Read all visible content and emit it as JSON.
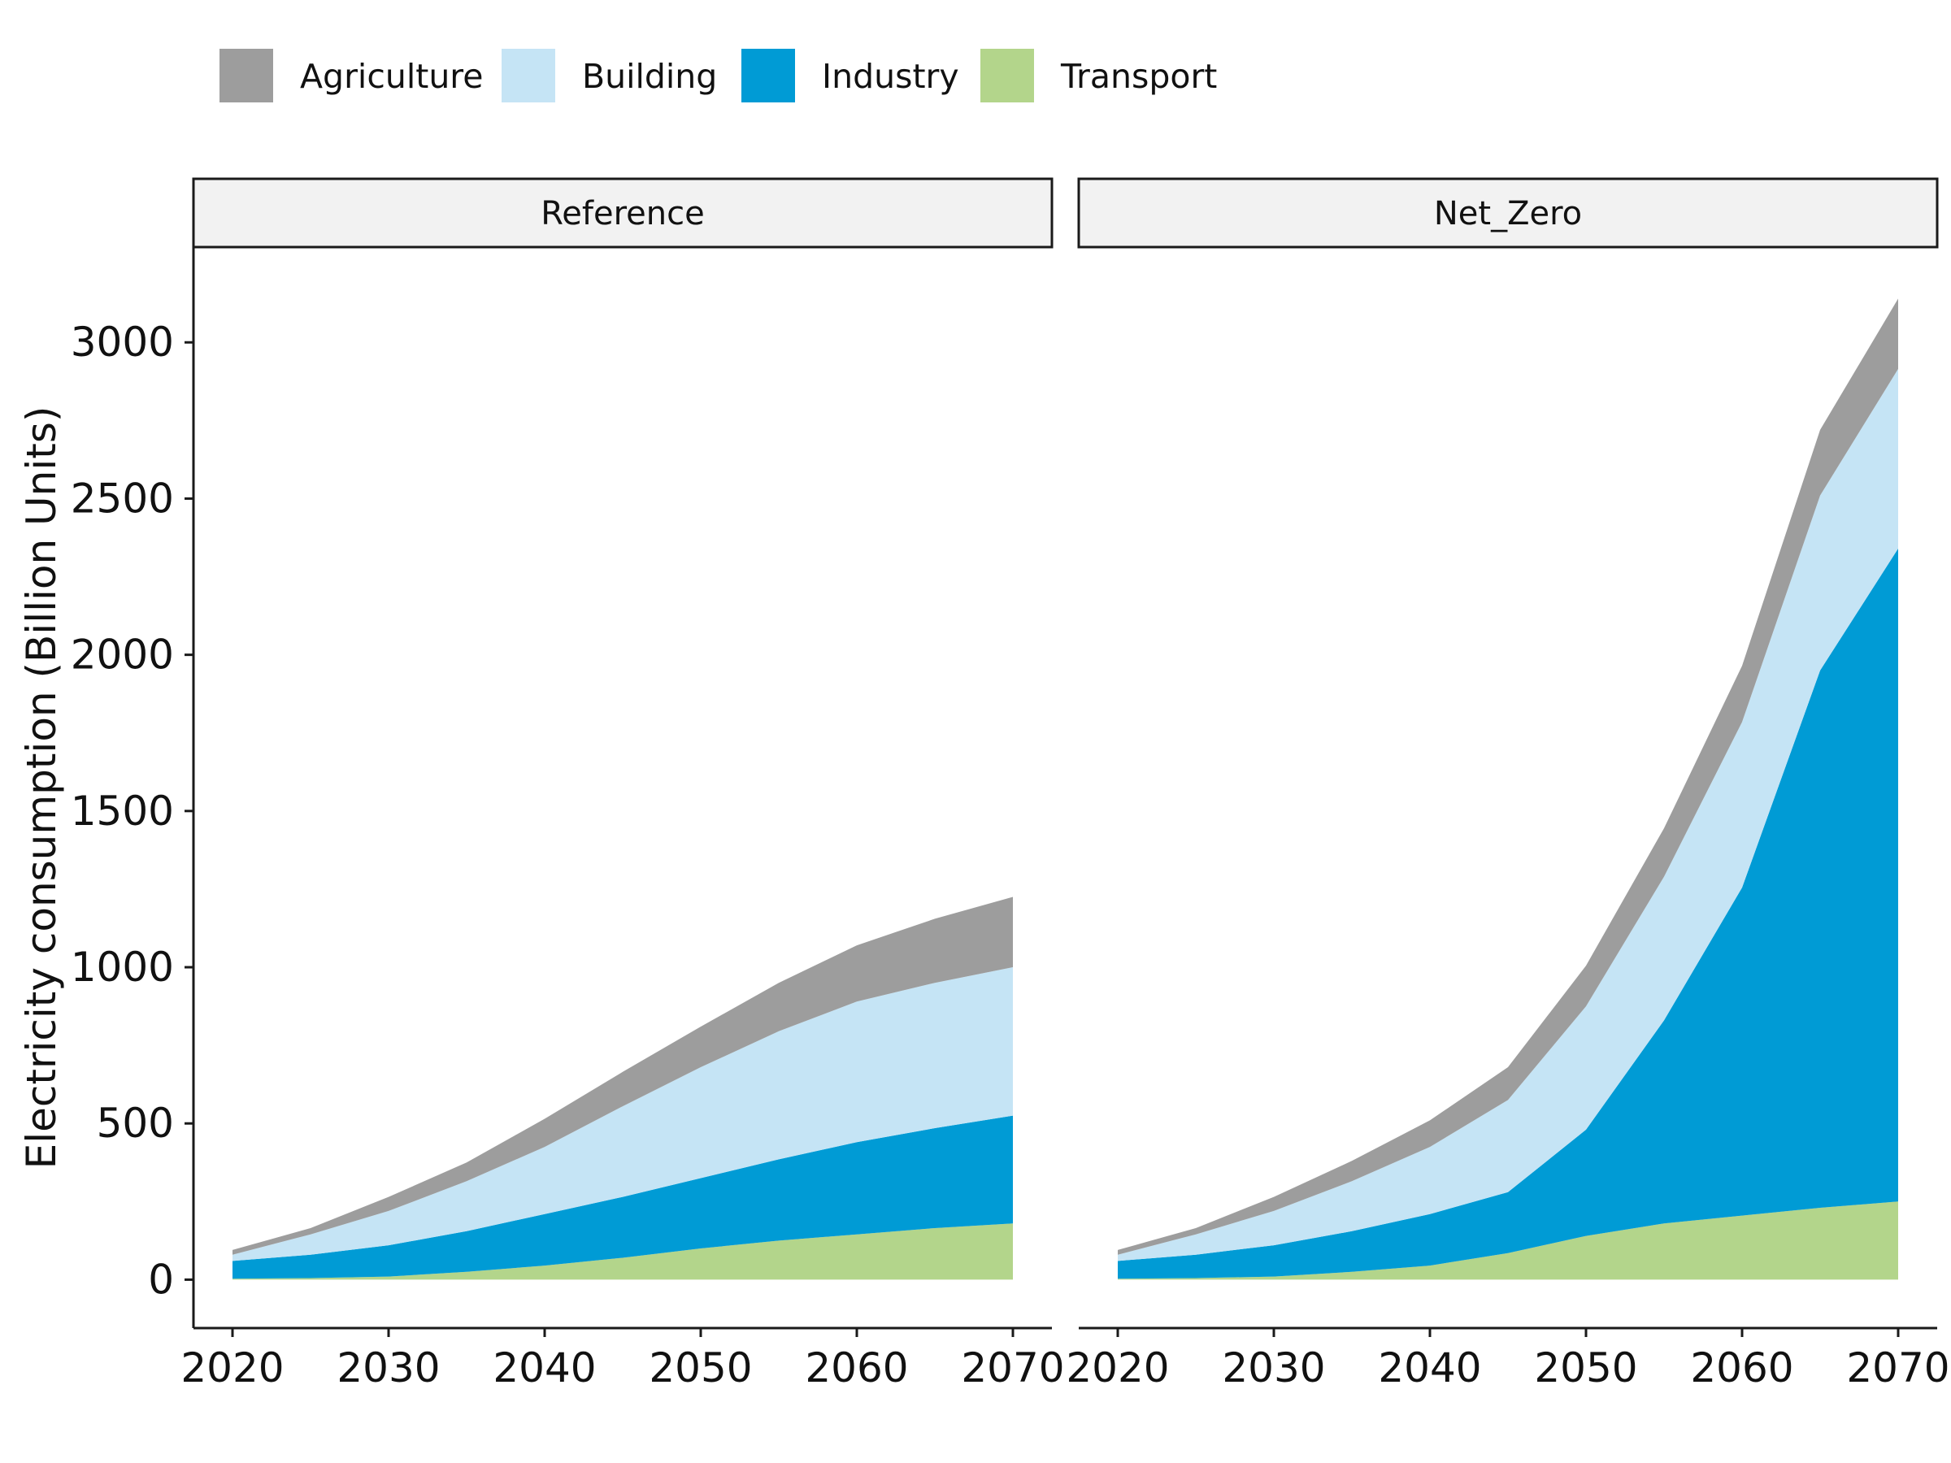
{
  "chart_data": {
    "type": "area",
    "stacked": true,
    "ylabel": "Electricity consumption (Billion Units)",
    "xlabel": "",
    "x": [
      2020,
      2025,
      2030,
      2035,
      2040,
      2045,
      2050,
      2055,
      2060,
      2065,
      2070
    ],
    "x_ticks": [
      2020,
      2030,
      2040,
      2050,
      2060,
      2070
    ],
    "x_tick_labels": [
      "2020",
      "2030",
      "2040",
      "2050",
      "2060",
      "2070"
    ],
    "y_ticks": [
      0,
      500,
      1000,
      1500,
      2000,
      2500,
      3000
    ],
    "y_tick_labels": [
      "0",
      "500",
      "1000",
      "1500",
      "2000",
      "2500",
      "3000"
    ],
    "xlim": [
      2017.5,
      2072.5
    ],
    "ylim": [
      -155,
      3305
    ],
    "grid": false,
    "legend_position": "top",
    "stack_order": [
      "Transport",
      "Industry",
      "Building",
      "Agriculture"
    ],
    "legend": [
      {
        "name": "Agriculture",
        "color": "#9d9d9d"
      },
      {
        "name": "Building",
        "color": "#c5e4f5"
      },
      {
        "name": "Industry",
        "color": "#009bd5"
      },
      {
        "name": "Transport",
        "color": "#b3d58b"
      }
    ],
    "panels": [
      {
        "title": "Reference",
        "series": [
          {
            "name": "Transport",
            "values": [
              3,
              5,
              10,
              25,
              45,
              70,
              100,
              125,
              145,
              165,
              180
            ]
          },
          {
            "name": "Industry",
            "values": [
              57,
              75,
              100,
              130,
              165,
              195,
              225,
              260,
              295,
              320,
              345
            ]
          },
          {
            "name": "Building",
            "values": [
              20,
              65,
              110,
              160,
              215,
              290,
              355,
              410,
              450,
              465,
              475
            ]
          },
          {
            "name": "Agriculture",
            "values": [
              15,
              20,
              45,
              60,
              90,
              110,
              130,
              155,
              180,
              205,
              225
            ]
          }
        ]
      },
      {
        "title": "Net_Zero",
        "series": [
          {
            "name": "Transport",
            "values": [
              3,
              5,
              10,
              25,
              45,
              85,
              140,
              180,
              205,
              230,
              250
            ]
          },
          {
            "name": "Industry",
            "values": [
              57,
              75,
              100,
              130,
              165,
              195,
              340,
              650,
              1050,
              1720,
              2090
            ]
          },
          {
            "name": "Building",
            "values": [
              20,
              65,
              110,
              160,
              215,
              295,
              395,
              460,
              530,
              560,
              575
            ]
          },
          {
            "name": "Agriculture",
            "values": [
              15,
              20,
              45,
              65,
              85,
              105,
              130,
              155,
              180,
              210,
              225
            ]
          }
        ]
      }
    ]
  }
}
